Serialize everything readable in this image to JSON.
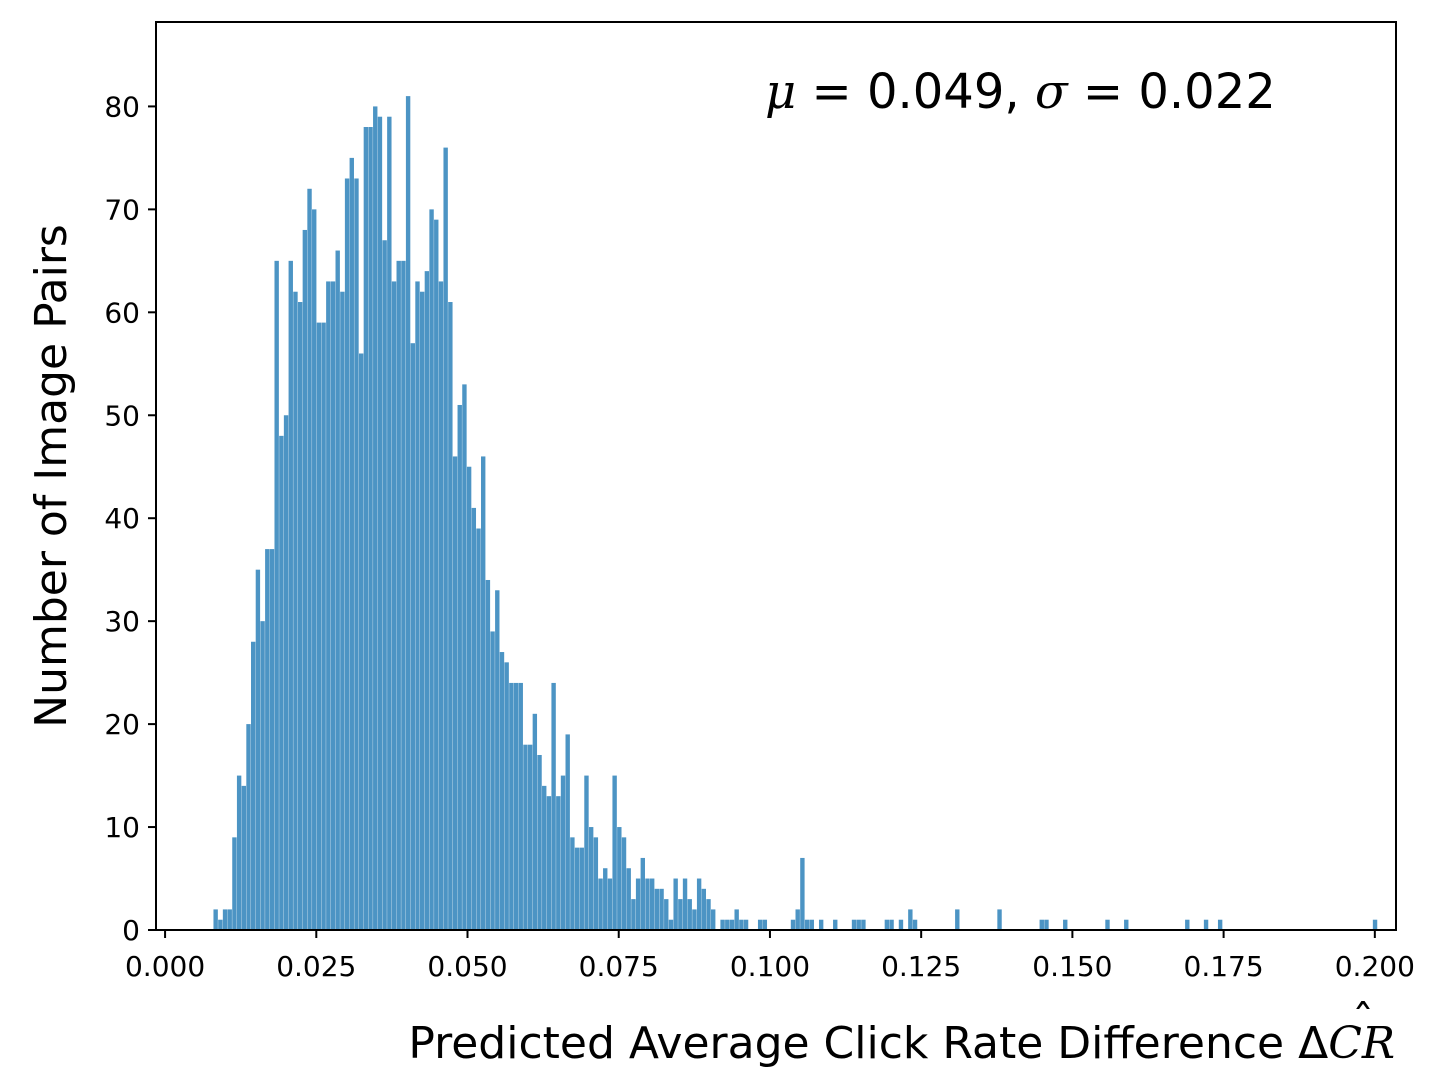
{
  "chart_data": {
    "type": "bar",
    "subtype": "histogram",
    "xlabel": "Predicted Average Click Rate Difference ΔCR̂",
    "xlabel_parts": {
      "text": "Predicted Average Click Rate Difference ",
      "delta": "Δ",
      "sym": "C",
      "sym2": "R",
      "hat": "ˆ"
    },
    "ylabel": "Number of Image Pairs",
    "annotation": {
      "mu_sym": "μ",
      "mu_eq": " = 0.049, ",
      "sigma_sym": "σ",
      "sigma_eq": " = 0.022"
    },
    "xlim": [
      -0.0015,
      0.2035
    ],
    "ylim": [
      0,
      88.2
    ],
    "xticks": [
      "0.000",
      "0.025",
      "0.050",
      "0.075",
      "0.100",
      "0.125",
      "0.150",
      "0.175",
      "0.200"
    ],
    "xtick_values": [
      0,
      0.025,
      0.05,
      0.075,
      0.1,
      0.125,
      0.15,
      0.175,
      0.2
    ],
    "yticks": [
      "0",
      "10",
      "20",
      "30",
      "40",
      "50",
      "60",
      "70",
      "80"
    ],
    "ytick_values": [
      0,
      10,
      20,
      30,
      40,
      50,
      60,
      70,
      80
    ],
    "bin_start": 0.008,
    "bin_width": 0.000776,
    "counts": [
      2,
      1,
      2,
      2,
      9,
      15,
      14,
      20,
      28,
      35,
      30,
      37,
      37,
      65,
      48,
      50,
      65,
      62,
      61,
      68,
      72,
      70,
      59,
      59,
      63,
      63,
      66,
      62,
      73,
      75,
      73,
      56,
      78,
      78,
      80,
      79,
      67,
      79,
      63,
      65,
      65,
      81,
      57,
      63,
      62,
      64,
      70,
      69,
      63,
      76,
      61,
      46,
      51,
      53,
      45,
      41,
      39,
      46,
      34,
      29,
      33,
      27,
      26,
      24,
      24,
      24,
      18,
      18,
      21,
      17,
      14,
      13,
      24,
      13,
      15,
      19,
      9,
      8,
      8,
      15,
      10,
      9,
      5,
      6,
      5,
      15,
      10,
      9,
      6,
      3,
      5,
      7,
      5,
      5,
      4,
      4,
      3,
      1,
      5,
      3,
      5,
      3,
      2,
      5,
      4,
      3,
      2,
      0,
      1,
      1,
      1,
      2,
      1,
      1,
      0,
      0,
      1,
      1,
      0,
      0,
      0,
      0,
      0,
      1,
      2,
      7,
      1,
      1,
      0,
      1,
      0,
      0,
      1,
      0,
      0,
      0,
      1,
      1,
      1,
      0,
      0,
      0,
      0,
      1,
      1,
      0,
      1,
      0,
      2,
      1,
      0,
      0,
      0,
      0,
      0,
      0,
      0,
      0,
      2,
      0,
      0,
      0,
      0,
      0,
      0,
      0,
      0,
      2,
      0,
      0,
      0,
      0,
      0,
      0,
      0,
      0,
      1,
      1,
      0,
      0,
      0,
      1,
      0,
      0,
      0,
      0,
      0,
      0,
      0,
      0,
      1,
      0,
      0,
      0,
      1,
      0,
      0,
      0,
      0,
      0,
      0,
      0,
      0,
      0,
      0,
      0,
      0,
      1,
      0,
      0,
      0,
      1,
      0,
      0,
      1,
      0,
      0,
      0,
      0,
      0,
      0,
      0,
      0,
      0,
      0,
      0,
      0,
      0,
      0,
      0,
      0,
      0,
      0,
      0,
      0,
      0,
      0,
      0,
      0,
      0,
      0,
      0,
      0,
      0,
      0,
      0,
      0,
      1
    ],
    "bar_color": "#4c94c4",
    "grid": false,
    "legend": "none"
  }
}
